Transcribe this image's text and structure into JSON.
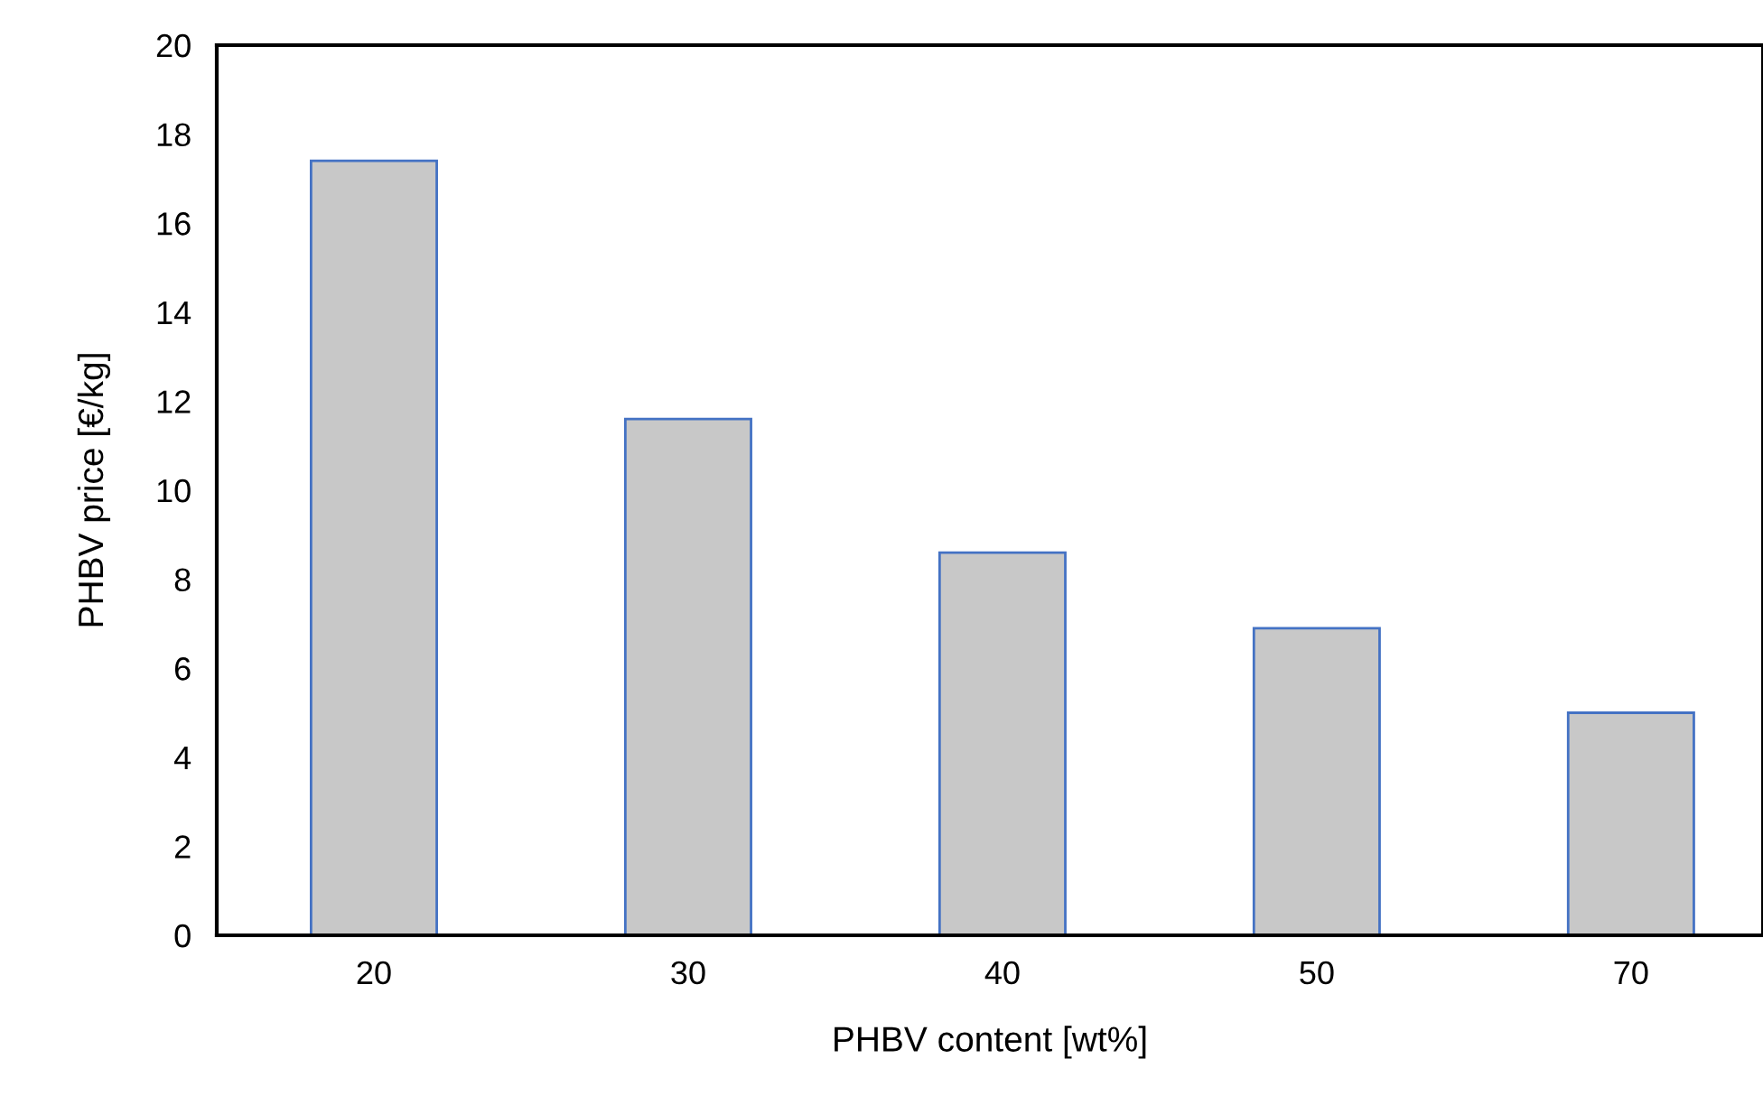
{
  "chart_data": {
    "type": "bar",
    "xlabel": "PHBV content [wt%]",
    "ylabel": "PHBV price [€/kg]",
    "categories": [
      "20",
      "30",
      "40",
      "50",
      "70"
    ],
    "values": [
      17.4,
      11.6,
      8.6,
      6.9,
      5.0
    ],
    "color": "#c8c8c8",
    "ylim": [
      0,
      20
    ],
    "yticks": [
      0,
      2,
      4,
      6,
      8,
      10,
      12,
      14,
      16,
      18,
      20
    ],
    "grid": false
  }
}
